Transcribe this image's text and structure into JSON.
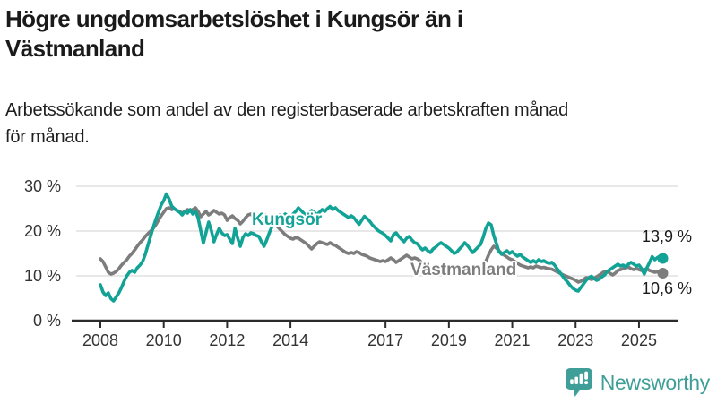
{
  "header": {
    "title_line1": "Högre ungdomsarbetslöshet i Kungsör än i",
    "title_line2": "Västmanland",
    "subtitle_line1": "Arbetssökande som andel av den registerbaserade arbetskraften månad",
    "subtitle_line2": "för månad."
  },
  "chart_data": {
    "type": "line",
    "unit": "percent",
    "x_start_year": 2008,
    "points_per_year": 12,
    "ylim": [
      0,
      30
    ],
    "grid": "horizontal",
    "gridline_color": "#d9d9d9",
    "axis_color": "#2b2b2b",
    "yticks": [
      {
        "pct": 0,
        "label": "0 %"
      },
      {
        "pct": 10,
        "label": "10 %"
      },
      {
        "pct": 20,
        "label": "20 %"
      },
      {
        "pct": 30,
        "label": "30 %"
      }
    ],
    "xticks": [
      {
        "year": 2008,
        "label": "2008"
      },
      {
        "year": 2010,
        "label": "2010"
      },
      {
        "year": 2012,
        "label": "2012"
      },
      {
        "year": 2014,
        "label": "2014"
      },
      {
        "year": 2017,
        "label": "2017"
      },
      {
        "year": 2019,
        "label": "2019"
      },
      {
        "year": 2021,
        "label": "2021"
      },
      {
        "year": 2023,
        "label": "2023"
      },
      {
        "year": 2025,
        "label": "2025"
      }
    ],
    "series": [
      {
        "name": "Kungsör",
        "label": "Kungsör",
        "color": "#12a396",
        "end_label": "13,9 %",
        "end_value": 13.9,
        "values": [
          8.0,
          6.4,
          5.6,
          6.2,
          4.9,
          4.4,
          5.3,
          6.2,
          7.4,
          8.8,
          10.0,
          10.8,
          11.2,
          10.8,
          11.8,
          12.4,
          13.2,
          14.8,
          16.8,
          18.8,
          20.8,
          22.6,
          24.2,
          25.8,
          26.8,
          28.3,
          27.2,
          25.6,
          25.0,
          24.6,
          24.2,
          23.6,
          24.4,
          24.0,
          24.8,
          23.8,
          24.4,
          23.0,
          20.2,
          17.3,
          19.6,
          22.0,
          20.2,
          17.6,
          19.2,
          20.6,
          19.6,
          19.0,
          19.2,
          18.2,
          17.2,
          20.6,
          18.4,
          16.6,
          18.6,
          19.4,
          19.0,
          19.6,
          19.4,
          19.0,
          18.8,
          17.6,
          16.6,
          18.0,
          19.6,
          21.0,
          22.2,
          23.0,
          23.6,
          23.2,
          23.8,
          23.4,
          23.0,
          23.8,
          24.4,
          25.2,
          24.6,
          24.0,
          23.4,
          24.0,
          24.6,
          24.2,
          23.6,
          24.2,
          24.8,
          24.4,
          25.0,
          25.5,
          24.8,
          25.2,
          24.6,
          24.2,
          23.8,
          23.4,
          23.0,
          23.4,
          23.0,
          22.2,
          21.5,
          22.4,
          23.3,
          22.8,
          22.2,
          21.4,
          20.8,
          20.2,
          19.8,
          19.5,
          19.0,
          18.4,
          17.8,
          19.2,
          19.6,
          18.8,
          18.2,
          17.6,
          18.4,
          18.8,
          18.0,
          17.4,
          17.2,
          16.4,
          15.8,
          16.2,
          15.6,
          15.2,
          16.0,
          16.4,
          17.0,
          17.4,
          17.0,
          16.6,
          16.2,
          15.6,
          15.0,
          15.3,
          16.0,
          16.6,
          17.4,
          16.8,
          16.0,
          15.2,
          15.8,
          16.4,
          17.0,
          18.6,
          20.6,
          21.8,
          21.4,
          19.0,
          17.2,
          15.4,
          14.8,
          15.2,
          15.6,
          15.0,
          15.4,
          14.8,
          14.4,
          14.8,
          14.2,
          13.8,
          13.4,
          13.0,
          13.4,
          13.0,
          13.6,
          13.2,
          13.4,
          13.0,
          12.8,
          13.0,
          12.4,
          11.6,
          10.8,
          10.0,
          9.2,
          8.6,
          7.8,
          7.2,
          6.8,
          6.6,
          7.4,
          8.2,
          9.0,
          9.6,
          9.9,
          9.4,
          9.0,
          9.3,
          9.8,
          10.2,
          11.0,
          11.4,
          11.8,
          12.2,
          12.6,
          12.2,
          12.4,
          12.0,
          12.6,
          13.0,
          12.6,
          12.2,
          12.4,
          11.6,
          10.4,
          11.8,
          13.0,
          14.3,
          13.6,
          14.1,
          14.4,
          13.9
        ]
      },
      {
        "name": "Västmanland",
        "label": "Västmanland",
        "color": "#7d7d7d",
        "end_label": "10,6 %",
        "end_value": 10.6,
        "values": [
          13.8,
          13.2,
          12.0,
          10.8,
          10.4,
          10.6,
          11.0,
          11.6,
          12.4,
          13.0,
          13.6,
          14.4,
          15.0,
          15.8,
          16.6,
          17.4,
          18.0,
          18.8,
          19.4,
          20.0,
          20.6,
          21.4,
          22.4,
          23.4,
          24.2,
          25.0,
          25.2,
          24.8,
          25.0,
          24.6,
          24.4,
          24.0,
          24.4,
          24.8,
          24.4,
          24.8,
          25.2,
          24.4,
          23.2,
          23.8,
          24.4,
          23.6,
          24.0,
          24.6,
          24.2,
          23.8,
          24.0,
          23.6,
          22.4,
          23.0,
          23.4,
          22.8,
          22.4,
          21.6,
          22.2,
          23.0,
          23.6,
          23.8,
          23.2,
          22.8,
          23.0,
          23.4,
          23.8,
          23.4,
          22.8,
          22.2,
          21.6,
          21.0,
          20.4,
          19.8,
          19.2,
          18.8,
          18.4,
          18.2,
          18.6,
          18.4,
          18.0,
          17.6,
          17.2,
          16.6,
          16.0,
          16.6,
          17.2,
          17.6,
          17.4,
          17.2,
          17.0,
          17.4,
          17.0,
          16.8,
          16.4,
          16.0,
          15.6,
          15.2,
          15.0,
          15.2,
          15.0,
          15.4,
          15.2,
          14.8,
          14.6,
          14.4,
          14.0,
          13.8,
          13.6,
          13.4,
          13.2,
          13.4,
          13.2,
          13.6,
          14.0,
          13.6,
          13.0,
          13.4,
          13.8,
          14.2,
          14.6,
          14.2,
          13.8,
          14.0,
          13.8,
          13.4,
          12.8,
          12.2,
          11.8,
          11.4,
          11.0,
          10.8,
          11.2,
          11.4,
          11.0,
          10.8,
          10.6,
          10.4,
          10.8,
          11.2,
          11.0,
          10.8,
          11.2,
          11.6,
          11.4,
          11.2,
          11.6,
          11.8,
          12.0,
          12.4,
          13.2,
          14.6,
          15.8,
          16.6,
          16.2,
          15.6,
          15.0,
          14.6,
          14.2,
          13.8,
          13.6,
          13.2,
          12.8,
          12.4,
          12.2,
          12.0,
          11.8,
          12.0,
          11.8,
          12.2,
          12.0,
          11.8,
          11.9,
          11.7,
          11.6,
          11.5,
          11.2,
          10.9,
          10.6,
          10.3,
          10.0,
          9.8,
          9.5,
          9.3,
          9.0,
          8.6,
          8.8,
          9.2,
          9.6,
          9.4,
          9.2,
          9.4,
          9.8,
          10.2,
          10.6,
          11.0,
          11.0,
          10.6,
          10.2,
          10.6,
          11.2,
          11.4,
          11.6,
          11.8,
          12.0,
          11.6,
          11.4,
          11.6,
          11.4,
          11.2,
          11.4,
          11.6,
          11.2,
          11.0,
          10.8,
          10.9,
          10.7,
          10.6
        ]
      }
    ]
  },
  "footer": {
    "brand": "Newsworthy",
    "brand_color": "#3f9f98"
  }
}
